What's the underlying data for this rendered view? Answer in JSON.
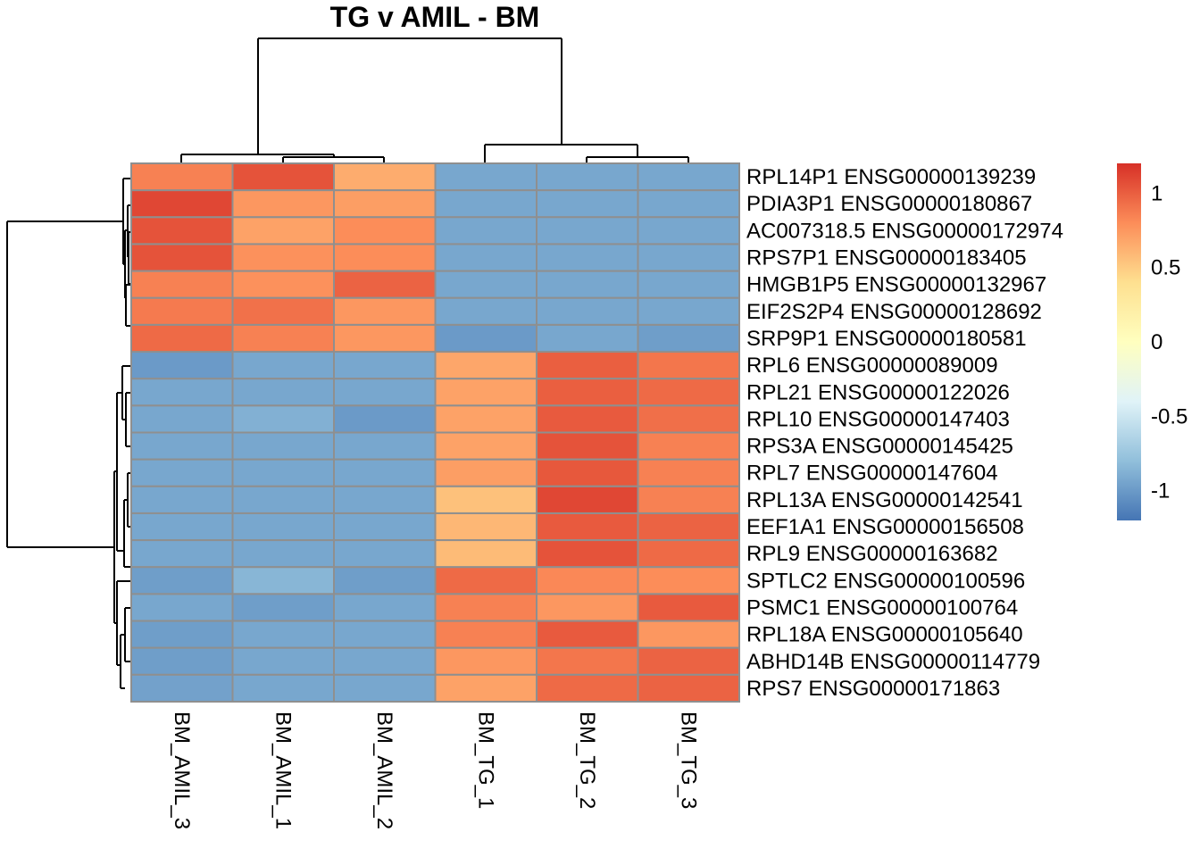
{
  "chart_data": {
    "type": "heatmap",
    "title": "TG v AMIL - BM",
    "columns": [
      "BM_AMIL_3",
      "BM_AMIL_1",
      "BM_AMIL_2",
      "BM_TG_1",
      "BM_TG_2",
      "BM_TG_3"
    ],
    "rows": [
      "RPL14P1 ENSG00000139239",
      "PDIA3P1 ENSG00000180867",
      "AC007318.5 ENSG00000172974",
      "RPS7P1 ENSG00000183405",
      "HMGB1P5 ENSG00000132967",
      "EIF2S2P4 ENSG00000128692",
      "SRP9P1 ENSG00000180581",
      "RPL6 ENSG00000089009",
      "RPL21 ENSG00000122026",
      "RPL10 ENSG00000147403",
      "RPS3A ENSG00000145425",
      "RPL7 ENSG00000147604",
      "RPL13A ENSG00000142541",
      "EEF1A1 ENSG00000156508",
      "RPL9 ENSG00000163682",
      "SPTLC2 ENSG00000100596",
      "PSMC1 ENSG00000100764",
      "RPL18A ENSG00000105640",
      "ABHD14B ENSG00000114779",
      "RPS7 ENSG00000171863"
    ],
    "values": [
      [
        0.85,
        1.05,
        0.65,
        -0.93,
        -0.93,
        -0.93
      ],
      [
        1.1,
        0.75,
        0.72,
        -0.93,
        -0.93,
        -0.93
      ],
      [
        1.05,
        0.7,
        0.8,
        -0.93,
        -0.93,
        -0.93
      ],
      [
        1.05,
        0.78,
        0.8,
        -0.93,
        -0.93,
        -0.93
      ],
      [
        0.85,
        0.78,
        0.98,
        -0.93,
        -0.93,
        -0.93
      ],
      [
        0.88,
        0.92,
        0.75,
        -0.93,
        -0.93,
        -0.93
      ],
      [
        0.95,
        0.85,
        0.75,
        -1.0,
        -0.93,
        -0.98
      ],
      [
        -1.0,
        -0.93,
        -0.93,
        0.68,
        1.0,
        0.9
      ],
      [
        -0.93,
        -0.93,
        -0.93,
        0.7,
        1.0,
        0.95
      ],
      [
        -0.93,
        -0.88,
        -1.0,
        0.7,
        1.02,
        0.93
      ],
      [
        -0.93,
        -0.93,
        -0.93,
        0.7,
        1.05,
        0.85
      ],
      [
        -0.93,
        -0.93,
        -0.93,
        0.72,
        1.03,
        0.85
      ],
      [
        -0.93,
        -0.93,
        -0.93,
        0.55,
        1.1,
        0.85
      ],
      [
        -0.93,
        -0.93,
        -0.93,
        0.6,
        1.02,
        0.98
      ],
      [
        -0.93,
        -0.93,
        -0.93,
        0.58,
        1.05,
        0.95
      ],
      [
        -0.98,
        -0.85,
        -0.98,
        0.95,
        0.82,
        0.8
      ],
      [
        -0.93,
        -0.98,
        -0.93,
        0.85,
        0.75,
        1.02
      ],
      [
        -0.98,
        -0.93,
        -0.93,
        0.85,
        1.02,
        0.75
      ],
      [
        -0.98,
        -0.93,
        -0.93,
        0.75,
        0.9,
        0.98
      ],
      [
        -0.96,
        -0.93,
        -0.93,
        0.7,
        0.95,
        0.98
      ]
    ],
    "legend": {
      "min": -1.2,
      "max": 1.2,
      "ticks": [
        1,
        0.5,
        0,
        -0.5,
        -1
      ],
      "tick_labels": [
        "1",
        "0.5",
        "0",
        "-0.5",
        "-1"
      ],
      "colors": [
        "#4575b4",
        "#91bfdb",
        "#e0f3f8",
        "#ffffbf",
        "#fee090",
        "#fc8d59",
        "#d73027"
      ]
    },
    "col_dendrogram": true,
    "row_dendrogram": true,
    "cell_border_color": "#8f8f8f"
  }
}
